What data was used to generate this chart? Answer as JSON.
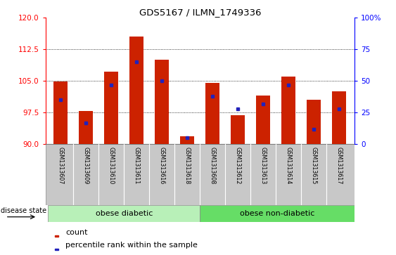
{
  "title": "GDS5167 / ILMN_1749336",
  "samples": [
    "GSM1313607",
    "GSM1313609",
    "GSM1313610",
    "GSM1313611",
    "GSM1313616",
    "GSM1313618",
    "GSM1313608",
    "GSM1313612",
    "GSM1313613",
    "GSM1313614",
    "GSM1313615",
    "GSM1313617"
  ],
  "count_values": [
    104.8,
    97.8,
    107.2,
    115.5,
    110.0,
    91.8,
    104.6,
    96.8,
    101.5,
    106.0,
    100.5,
    102.5
  ],
  "percentile_values": [
    35,
    17,
    47,
    65,
    50,
    5,
    38,
    28,
    32,
    47,
    12,
    28
  ],
  "y_min": 90,
  "y_max": 120,
  "y_ticks": [
    90,
    97.5,
    105,
    112.5,
    120
  ],
  "y_right_ticks": [
    0,
    25,
    50,
    75,
    100
  ],
  "bar_color": "#cc2200",
  "blue_color": "#2222bb",
  "background_xtick": "#c8c8c8",
  "group1_label": "obese diabetic",
  "group2_label": "obese non-diabetic",
  "group1_color": "#b8f0b8",
  "group2_color": "#66dd66",
  "group1_count": 6,
  "group2_count": 6,
  "disease_label": "disease state",
  "legend_count": "count",
  "legend_percentile": "percentile rank within the sample",
  "bar_width": 0.55
}
